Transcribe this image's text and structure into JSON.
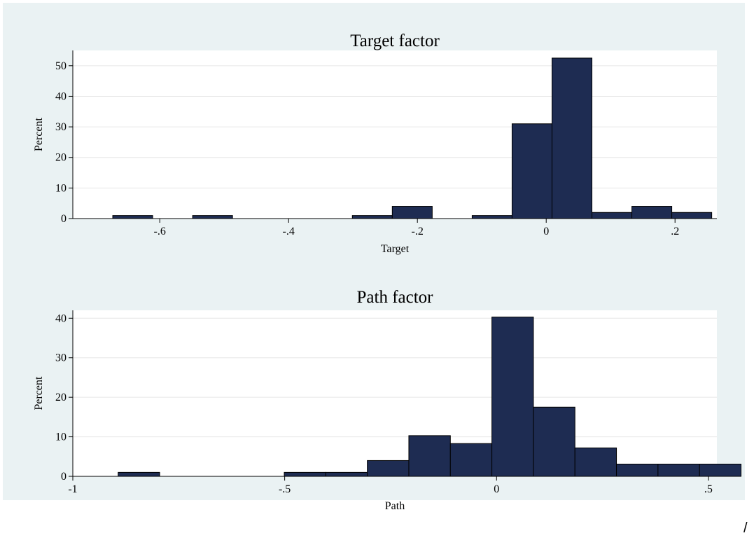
{
  "colors": {
    "outer_background": "#eaf2f3",
    "plot_background": "#ffffff",
    "bar_fill": "#1e2c52",
    "bar_stroke": "#000000",
    "gridline": "#e6e6e6",
    "axis": "#000000"
  },
  "corner_mark": "/",
  "chart_data": [
    {
      "type": "bar",
      "subtype": "histogram",
      "title": "Target factor",
      "xlabel": "Target",
      "ylabel": "Percent",
      "xlim": [
        -0.735,
        0.265
      ],
      "ylim": [
        0,
        55
      ],
      "xticks": [
        -0.6,
        -0.4,
        -0.2,
        0,
        0.2
      ],
      "xtick_labels": [
        "-.6",
        "-.4",
        "-.2",
        "0",
        ".2"
      ],
      "yticks": [
        0,
        10,
        20,
        30,
        40,
        50
      ],
      "ytick_labels": [
        "0",
        "10",
        "20",
        "30",
        "40",
        "50"
      ],
      "grid": true,
      "bin_edges": [
        -0.673,
        -0.611,
        -0.549,
        -0.487,
        -0.425,
        -0.363,
        -0.301,
        -0.239,
        -0.177,
        -0.115,
        -0.053,
        0.009,
        0.071,
        0.133,
        0.195,
        0.257
      ],
      "values": [
        1,
        0,
        1,
        0,
        0,
        0,
        1,
        4,
        0,
        1,
        31,
        52.5,
        2,
        4,
        2
      ]
    },
    {
      "type": "bar",
      "subtype": "histogram",
      "title": "Path factor",
      "xlabel": "Path",
      "ylabel": "Percent",
      "xlim": [
        -1.0,
        0.52
      ],
      "ylim": [
        0,
        42
      ],
      "xticks": [
        -1,
        -0.5,
        0,
        0.5
      ],
      "xtick_labels": [
        "-1",
        "-.5",
        "0",
        ".5"
      ],
      "yticks": [
        0,
        10,
        20,
        30,
        40
      ],
      "ytick_labels": [
        "0",
        "10",
        "20",
        "30",
        "40"
      ],
      "grid": true,
      "bin_edges": [
        -0.893,
        -0.795,
        -0.697,
        -0.599,
        -0.501,
        -0.403,
        -0.305,
        -0.207,
        -0.109,
        -0.011,
        0.087,
        0.185,
        0.283,
        0.381,
        0.479,
        0.577
      ],
      "values": [
        1,
        0,
        0,
        0,
        1,
        1,
        4,
        10.3,
        8.3,
        40.3,
        17.5,
        7.2,
        3.1,
        3.1,
        3.1
      ]
    }
  ]
}
